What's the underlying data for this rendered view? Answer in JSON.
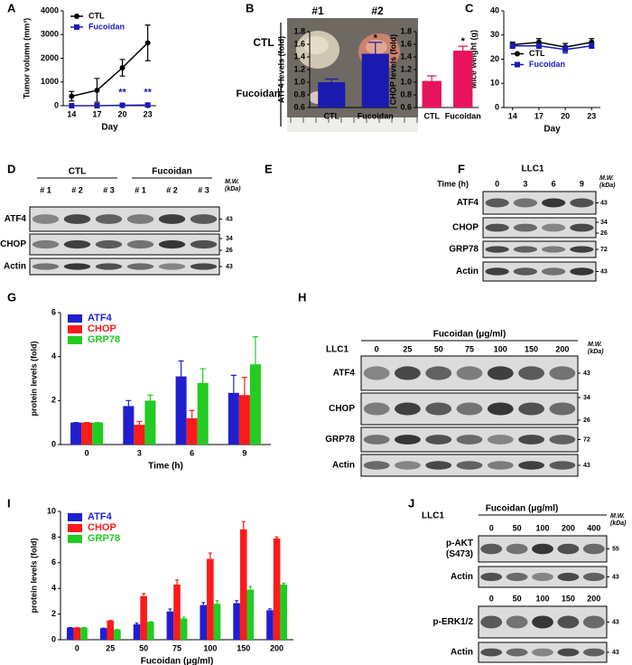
{
  "panel_labels": [
    "A",
    "B",
    "C",
    "D",
    "E",
    "F",
    "G",
    "H",
    "I",
    "J"
  ],
  "chart_data": [
    {
      "type": "line",
      "xlabel": "Day",
      "ylabel": "Tumor volumn (mm³)",
      "x": [
        14,
        17,
        20,
        23
      ],
      "xlim": [
        13,
        24
      ],
      "xticks": [
        14,
        17,
        20,
        23
      ],
      "ylim": [
        0,
        4000
      ],
      "yticks": [
        0,
        1000,
        2000,
        3000,
        4000
      ],
      "legend": "upper left",
      "series": [
        {
          "name": "CTL",
          "color": "#000000",
          "marker": "circle",
          "values": [
            400,
            650,
            1600,
            2650
          ],
          "errors": [
            200,
            500,
            350,
            750
          ]
        },
        {
          "name": "Fucoidan",
          "color": "#1a1ab5",
          "marker": "square",
          "values": [
            0,
            0,
            20,
            30
          ],
          "errors": [
            10,
            10,
            15,
            20
          ]
        }
      ],
      "annotations": [
        {
          "text": "**",
          "x": 20,
          "y": 550,
          "color": "#1a1ab5"
        },
        {
          "text": "**",
          "x": 23,
          "y": 550,
          "color": "#1a1ab5"
        }
      ]
    },
    {
      "type": "line",
      "xlabel": "Day",
      "ylabel": "Mice weight (g)",
      "x": [
        14,
        17,
        20,
        23
      ],
      "xlim": [
        13,
        24
      ],
      "xticks": [
        14,
        17,
        20,
        23
      ],
      "ylim": [
        0,
        40
      ],
      "yticks": [
        0,
        10,
        20,
        30,
        40
      ],
      "legend": "center left",
      "series": [
        {
          "name": "CTL",
          "color": "#000000",
          "marker": "circle",
          "values": [
            26,
            27,
            25,
            27
          ],
          "errors": [
            1,
            1.5,
            1.5,
            1.5
          ]
        },
        {
          "name": "Fucoidan",
          "color": "#1a1ab5",
          "marker": "square",
          "values": [
            25.5,
            25.5,
            24,
            25.5
          ],
          "errors": [
            1,
            1,
            1.5,
            1
          ]
        }
      ]
    },
    {
      "type": "bar",
      "ylabel": "ATF4 levels (fold)",
      "categories": [
        "CTL",
        "Fucoidan"
      ],
      "values": [
        1.0,
        1.45
      ],
      "errors": [
        0.05,
        0.18
      ],
      "color": "#1a1ab0",
      "ylim": [
        0.6,
        1.8
      ],
      "yticks": [
        0.6,
        0.8,
        {
          "value": 1,
          "label": "1.0"
        },
        1.2,
        1.4,
        1.6,
        1.8
      ],
      "annotations": [
        {
          "text": "*",
          "x": "Fucoidan",
          "y": 1.69,
          "color": "#000000"
        }
      ]
    },
    {
      "type": "bar",
      "ylabel": "CHOP levels (fold)",
      "categories": [
        "CTL",
        "Fucoidan"
      ],
      "values": [
        1.02,
        1.5
      ],
      "errors": [
        0.08,
        0.07
      ],
      "color": "#e8145a",
      "ylim": [
        0.6,
        1.8
      ],
      "yticks": [
        0.6,
        0.8,
        {
          "value": 1,
          "label": "1.0"
        },
        1.2,
        1.4,
        1.6,
        1.8
      ],
      "annotations": [
        {
          "text": "*",
          "x": "Fucoidan",
          "y": 1.64,
          "color": "#000000"
        }
      ]
    },
    {
      "type": "bar",
      "xlabel": "Time (h)",
      "ylabel": "protein levels (fold)",
      "categories": [
        "0",
        "3",
        "6",
        "9"
      ],
      "ylim": [
        0,
        6
      ],
      "yticks": [
        0,
        2,
        4,
        6
      ],
      "legend": "upper left",
      "series": [
        {
          "name": "ATF4",
          "color": "#1f1fcf",
          "values": [
            1,
            1.75,
            3.1,
            2.35
          ],
          "errors": [
            0,
            0.25,
            0.7,
            0.8
          ]
        },
        {
          "name": "CHOP",
          "color": "#ff1a1a",
          "values": [
            1,
            0.9,
            1.2,
            2.25
          ],
          "errors": [
            0,
            0.15,
            0.35,
            0.8
          ]
        },
        {
          "name": "GRP78",
          "color": "#22cc22",
          "values": [
            1,
            2,
            2.8,
            3.65
          ],
          "errors": [
            0,
            0.25,
            0.65,
            1.25
          ]
        }
      ]
    },
    {
      "type": "bar",
      "xlabel": "Fucoidan (μg/ml)",
      "ylabel": "protein levels (fold)",
      "categories": [
        "0",
        "25",
        "50",
        "75",
        "100",
        "150",
        "200"
      ],
      "ylim": [
        0,
        10
      ],
      "yticks": [
        0,
        2,
        4,
        6,
        8,
        10
      ],
      "legend": "upper left",
      "series": [
        {
          "name": "ATF4",
          "color": "#1f1fcf",
          "values": [
            0.95,
            0.9,
            1.2,
            2.2,
            2.7,
            2.85,
            2.3
          ],
          "errors": [
            0,
            0,
            0.1,
            0.2,
            0.2,
            0.2,
            0.1
          ]
        },
        {
          "name": "CHOP",
          "color": "#ff1a1a",
          "values": [
            0.95,
            1.5,
            3.4,
            4.3,
            6.3,
            8.6,
            7.9
          ],
          "errors": [
            0,
            0,
            0.2,
            0.35,
            0.45,
            0.6,
            0.1
          ]
        },
        {
          "name": "GRP78",
          "color": "#22cc22",
          "values": [
            0.95,
            0.8,
            1.4,
            1.65,
            2.8,
            3.9,
            4.3
          ],
          "errors": [
            0,
            0,
            0,
            0.1,
            0.25,
            0.25,
            0.1
          ]
        }
      ]
    }
  ],
  "photo": {
    "columns": [
      "#1",
      "#2"
    ],
    "rows": [
      "CTL",
      "Fucoidan"
    ]
  },
  "blots": [
    {
      "groups": [
        "CTL",
        "Fucoidan"
      ],
      "mw": [
        "M.W.",
        "(kDa)"
      ],
      "sections": [
        {
          "lanes": [
            "# 1",
            "# 2",
            "# 3",
            "# 1",
            "# 2",
            "# 3"
          ],
          "rows": [
            {
              "label": "ATF4",
              "markers": [
                "43"
              ]
            },
            {
              "label": "CHOP",
              "markers": [
                "34",
                "26"
              ]
            },
            {
              "label": "Actin",
              "markers": [
                "43"
              ]
            }
          ]
        }
      ]
    },
    {
      "cell_line": "LLC1",
      "lane_title": "Time (h)",
      "mw": [
        "M.W.",
        "(kDa)"
      ],
      "sections": [
        {
          "lanes": [
            "0",
            "3",
            "6",
            "9"
          ],
          "rows": [
            {
              "label": "ATF4",
              "markers": [
                "43"
              ]
            },
            {
              "label": "CHOP",
              "markers": [
                "34",
                "26"
              ]
            },
            {
              "label": "GRP78",
              "markers": [
                "72"
              ]
            },
            {
              "label": "Actin",
              "markers": [
                "43"
              ]
            }
          ]
        }
      ]
    },
    {
      "title": "Fucoidan (μg/ml)",
      "cell_line": "LLC1",
      "mw": [
        "M.W.",
        "(kDa)"
      ],
      "sections": [
        {
          "lanes": [
            "0",
            "25",
            "50",
            "75",
            "100",
            "150",
            "200"
          ],
          "rows": [
            {
              "label": "ATF4",
              "markers": [
                "43"
              ]
            },
            {
              "label": "CHOP",
              "markers": [
                "34",
                "26"
              ]
            },
            {
              "label": "GRP78",
              "markers": [
                "72"
              ]
            },
            {
              "label": "Actin",
              "markers": [
                "43"
              ]
            }
          ]
        }
      ]
    },
    {
      "title": "Fucoidan (μg/ml)",
      "cell_line": "LLC1",
      "mw": [
        "M.W.",
        "(kDa)"
      ],
      "sections": [
        {
          "lanes": [
            "0",
            "50",
            "100",
            "200",
            "400"
          ],
          "rows": [
            {
              "label": "p-AKT",
              "sublabel": "(S473)",
              "markers": [
                "55"
              ]
            },
            {
              "label": "Actin",
              "markers": [
                "43"
              ]
            }
          ]
        },
        {
          "lanes": [
            "0",
            "50",
            "100",
            "150",
            "200"
          ],
          "rows": [
            {
              "label": "p-ERK1/2",
              "markers": [
                "43"
              ]
            },
            {
              "label": "Actin",
              "markers": [
                "43"
              ]
            }
          ]
        }
      ]
    }
  ]
}
